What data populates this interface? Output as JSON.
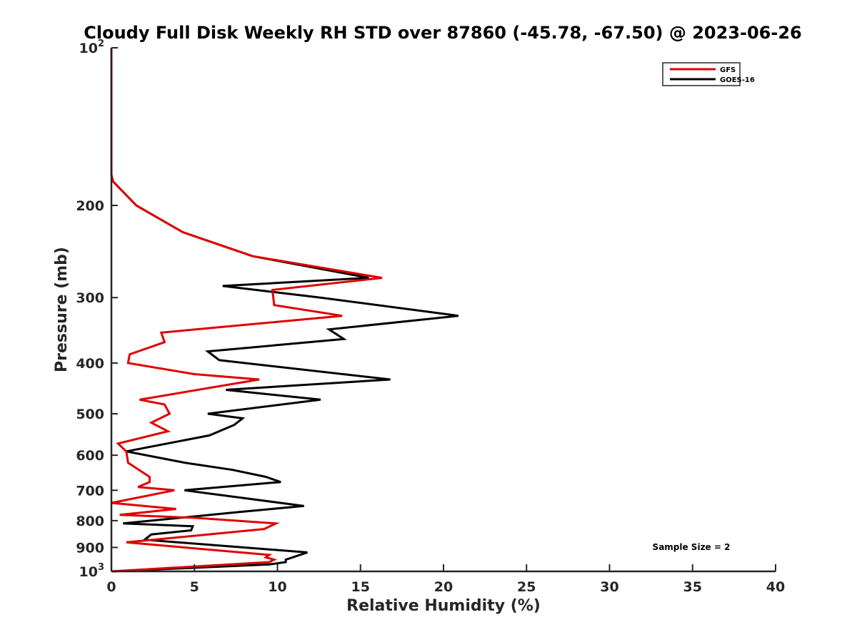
{
  "chart_data": {
    "type": "line",
    "title": "Cloudy Full Disk Weekly RH STD over 87860 (-45.78, -67.50) @ 2023-06-26",
    "xlabel": "Relative Humidity (%)",
    "ylabel": "Pressure (mb)",
    "xlim": [
      0,
      40
    ],
    "ylim": [
      100,
      1000
    ],
    "yscale": "log",
    "y_reversed": true,
    "grid": false,
    "legend_position": "top-right",
    "x_ticks": [
      "0",
      "5",
      "10",
      "15",
      "20",
      "25",
      "30",
      "35",
      "40"
    ],
    "x_tick_values": [
      0,
      5,
      10,
      15,
      20,
      25,
      30,
      35,
      40
    ],
    "y_ticks": [
      {
        "value": 100,
        "base": "10",
        "exp": "2"
      },
      {
        "value": 200,
        "label": "200"
      },
      {
        "value": 300,
        "label": "300"
      },
      {
        "value": 400,
        "label": "400"
      },
      {
        "value": 500,
        "label": "500"
      },
      {
        "value": 600,
        "label": "600"
      },
      {
        "value": 700,
        "label": "700"
      },
      {
        "value": 800,
        "label": "800"
      },
      {
        "value": 900,
        "label": "900"
      },
      {
        "value": 1000,
        "base": "10",
        "exp": "3"
      }
    ],
    "series": [
      {
        "name": "GFS",
        "color": "#e00000",
        "points": [
          [
            0,
            100
          ],
          [
            0,
            125
          ],
          [
            0,
            150
          ],
          [
            0,
            175
          ],
          [
            0.1,
            180
          ],
          [
            1.5,
            200
          ],
          [
            4.3,
            225
          ],
          [
            8.5,
            250
          ],
          [
            16.3,
            275
          ],
          [
            9.7,
            290
          ],
          [
            9.8,
            310
          ],
          [
            13.9,
            325
          ],
          [
            3.0,
            350
          ],
          [
            3.2,
            365
          ],
          [
            1.1,
            385
          ],
          [
            1.0,
            400
          ],
          [
            5.0,
            420
          ],
          [
            8.9,
            430
          ],
          [
            1.7,
            470
          ],
          [
            3.2,
            480
          ],
          [
            3.5,
            500
          ],
          [
            2.4,
            520
          ],
          [
            3.4,
            540
          ],
          [
            0.4,
            570
          ],
          [
            0.9,
            590
          ],
          [
            1.0,
            620
          ],
          [
            2.3,
            660
          ],
          [
            2.3,
            675
          ],
          [
            1.6,
            690
          ],
          [
            3.8,
            700
          ],
          [
            0,
            740
          ],
          [
            3.9,
            760
          ],
          [
            0.5,
            780
          ],
          [
            5.0,
            790
          ],
          [
            9.9,
            810
          ],
          [
            9.2,
            830
          ],
          [
            0.9,
            880
          ],
          [
            9.5,
            930
          ],
          [
            9.3,
            940
          ],
          [
            9.8,
            950
          ],
          [
            9.5,
            960
          ],
          [
            0,
            1000
          ]
        ]
      },
      {
        "name": "GOES-16",
        "color": "#000000",
        "points": [
          [
            0,
            100
          ],
          [
            0,
            125
          ],
          [
            0,
            150
          ],
          [
            0,
            175
          ],
          [
            0.1,
            180
          ],
          [
            1.5,
            200
          ],
          [
            4.3,
            225
          ],
          [
            8.5,
            250
          ],
          [
            15.5,
            275
          ],
          [
            6.7,
            285
          ],
          [
            12.6,
            300
          ],
          [
            20.9,
            325
          ],
          [
            13.1,
            345
          ],
          [
            14.0,
            360
          ],
          [
            5.8,
            380
          ],
          [
            6.5,
            395
          ],
          [
            16.8,
            430
          ],
          [
            6.9,
            450
          ],
          [
            12.6,
            470
          ],
          [
            5.8,
            500
          ],
          [
            7.9,
            510
          ],
          [
            7.4,
            525
          ],
          [
            5.9,
            550
          ],
          [
            0.9,
            590
          ],
          [
            4.4,
            620
          ],
          [
            7.3,
            640
          ],
          [
            9.3,
            660
          ],
          [
            10.2,
            675
          ],
          [
            4.4,
            700
          ],
          [
            11.6,
            750
          ],
          [
            7.7,
            770
          ],
          [
            0.7,
            810
          ],
          [
            4.9,
            820
          ],
          [
            4.8,
            835
          ],
          [
            2.4,
            850
          ],
          [
            2.0,
            870
          ],
          [
            11.8,
            920
          ],
          [
            10.5,
            950
          ],
          [
            10.5,
            960
          ],
          [
            9.5,
            970
          ],
          [
            0,
            1000
          ]
        ]
      }
    ],
    "annotation": "Sample Size = 2"
  }
}
